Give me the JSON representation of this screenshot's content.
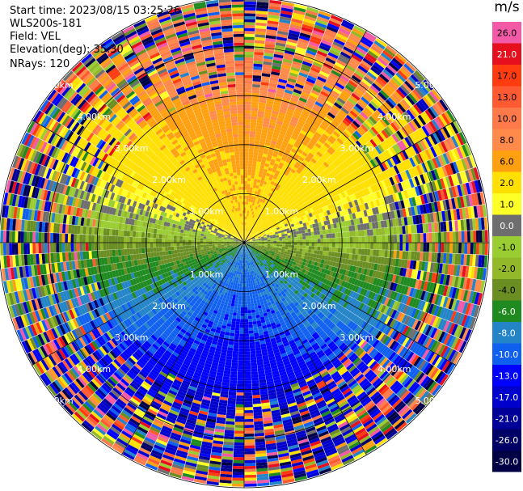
{
  "header": {
    "start_time": "Start time: 2023/08/15 03:25:26",
    "instrument": "WLS200s-181",
    "field": "Field: VEL",
    "elevation": "Elevation(deg): 35.30",
    "nrays": "NRays: 120"
  },
  "colorbar": {
    "unit": "m/s",
    "levels": [
      {
        "label": "26.0",
        "color": "#f25aa8"
      },
      {
        "label": "21.0",
        "color": "#e60f1e"
      },
      {
        "label": "17.0",
        "color": "#ff3b10"
      },
      {
        "label": "13.0",
        "color": "#ff5a32"
      },
      {
        "label": "10.0",
        "color": "#ff7a4a"
      },
      {
        "label": "8.0",
        "color": "#ff8a4a"
      },
      {
        "label": "6.0",
        "color": "#ffa010"
      },
      {
        "label": "2.0",
        "color": "#ffe000"
      },
      {
        "label": "1.0",
        "color": "#ffff28"
      },
      {
        "label": "0.0",
        "color": "#6e6e6e"
      },
      {
        "label": "-1.0",
        "color": "#9acd32"
      },
      {
        "label": "-2.0",
        "color": "#93b82a"
      },
      {
        "label": "-4.0",
        "color": "#6b8e23"
      },
      {
        "label": "-6.0",
        "color": "#1f8a1f"
      },
      {
        "label": "-8.0",
        "color": "#2484c8"
      },
      {
        "label": "-10.0",
        "color": "#1060f0"
      },
      {
        "label": "-13.0",
        "color": "#0000ff"
      },
      {
        "label": "-17.0",
        "color": "#0000cc"
      },
      {
        "label": "-21.0",
        "color": "#000099"
      },
      {
        "label": "-26.0",
        "color": "#000066"
      },
      {
        "label": "-30.0",
        "color": "#000044"
      }
    ]
  },
  "chart_data": {
    "type": "polar-ppi",
    "field": "VEL",
    "units": "m/s",
    "nrays": 120,
    "range_rings_km": [
      1.0,
      2.0,
      3.0,
      4.0,
      5.0
    ],
    "ring_labels": [
      "1.00km",
      "2.00km",
      "3.00km",
      "4.00km",
      "5.00km"
    ],
    "max_range_km": 5.0,
    "azimuth_spokes_deg": [
      0,
      30,
      60,
      90,
      120,
      150,
      180,
      210,
      240,
      270,
      300,
      330
    ],
    "field_summary": [
      {
        "sector": "north",
        "near_range_velocity_ms": 6.0
      },
      {
        "sector": "northeast",
        "near_range_velocity_ms": 2.0
      },
      {
        "sector": "east",
        "near_range_velocity_ms": 0.0
      },
      {
        "sector": "south",
        "near_range_velocity_ms": -6.0
      },
      {
        "sector": "west",
        "near_range_velocity_ms": 0.0
      }
    ],
    "noise_beyond_km": 3.0
  }
}
